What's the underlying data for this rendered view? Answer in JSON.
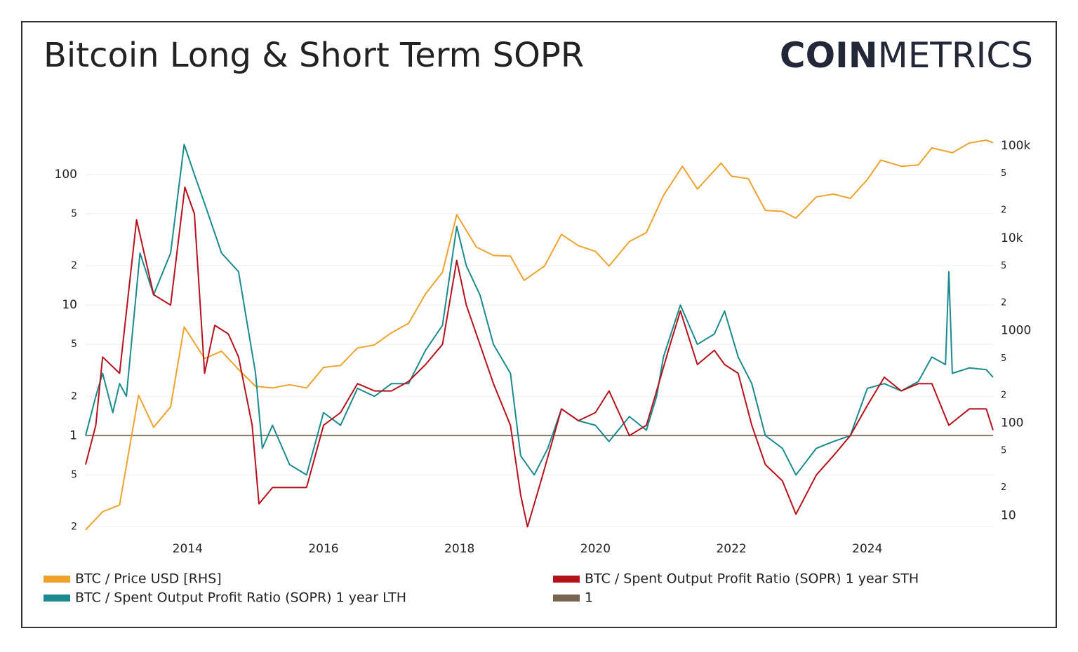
{
  "chart_data": {
    "type": "line",
    "title": "Bitcoin Long & Short Term SOPR",
    "logo": {
      "bold": "COIN",
      "light": "METRICS"
    },
    "log_scale": true,
    "grid": true,
    "xlim": [
      2012.5,
      2025.85
    ],
    "xticks": [
      2014,
      2016,
      2018,
      2020,
      2022,
      2024
    ],
    "ylim": [
      0.18,
      190
    ],
    "yticks": [
      {
        "value": 0.2,
        "label": "2"
      },
      {
        "value": 0.5,
        "label": "5"
      },
      1,
      2,
      5,
      10,
      {
        "value": 20,
        "label": "2"
      },
      {
        "value": 50,
        "label": "5"
      },
      100
    ],
    "y2lim": [
      6.5,
      121000
    ],
    "y2ticks": [
      10,
      {
        "value": 20,
        "label": "2"
      },
      {
        "value": 50,
        "label": "5"
      },
      100,
      {
        "value": 200,
        "label": "2"
      },
      {
        "value": 500,
        "label": "5"
      },
      1000,
      {
        "value": 2000,
        "label": "2"
      },
      {
        "value": 5000,
        "label": "5"
      },
      {
        "value": 10000,
        "label": "10k"
      },
      {
        "value": 20000,
        "label": "2"
      },
      {
        "value": 50000,
        "label": "5"
      },
      {
        "value": 100000,
        "label": "100k"
      }
    ],
    "series": [
      {
        "name": "BTC / Price USD [RHS]",
        "color": "#f0a22e",
        "axis": "y2",
        "x": [
          2012.5,
          2012.75,
          2013.0,
          2013.28,
          2013.5,
          2013.75,
          2013.95,
          2014.25,
          2014.5,
          2014.75,
          2015.0,
          2015.25,
          2015.5,
          2015.75,
          2016.0,
          2016.25,
          2016.5,
          2016.75,
          2017.0,
          2017.25,
          2017.5,
          2017.75,
          2017.96,
          2018.25,
          2018.5,
          2018.75,
          2018.95,
          2019.25,
          2019.5,
          2019.75,
          2020.0,
          2020.2,
          2020.5,
          2020.75,
          2021.0,
          2021.28,
          2021.5,
          2021.85,
          2022.0,
          2022.25,
          2022.5,
          2022.75,
          2022.95,
          2023.25,
          2023.5,
          2023.75,
          2024.0,
          2024.2,
          2024.5,
          2024.75,
          2024.95,
          2025.25,
          2025.5,
          2025.75,
          2025.85
        ],
        "values": [
          7,
          11,
          13,
          200,
          90,
          150,
          1100,
          500,
          600,
          380,
          250,
          240,
          260,
          240,
          400,
          420,
          650,
          700,
          950,
          1200,
          2500,
          4300,
          18000,
          8000,
          6500,
          6400,
          3500,
          5000,
          11000,
          8300,
          7200,
          5000,
          9200,
          11500,
          29000,
          60000,
          34000,
          65000,
          47000,
          44000,
          20000,
          19500,
          16500,
          28000,
          30000,
          27000,
          43000,
          70000,
          60000,
          62000,
          95000,
          84000,
          107000,
          115000,
          108000
        ]
      },
      {
        "name": "BTC / Spent Output Profit Ratio (SOPR) 1 year STH",
        "color": "#b5121b",
        "x": [
          2012.5,
          2012.65,
          2012.75,
          2013.0,
          2013.25,
          2013.5,
          2013.75,
          2013.96,
          2014.1,
          2014.25,
          2014.4,
          2014.6,
          2014.75,
          2014.95,
          2015.05,
          2015.25,
          2015.5,
          2015.75,
          2016.0,
          2016.25,
          2016.5,
          2016.75,
          2017.0,
          2017.25,
          2017.5,
          2017.75,
          2017.96,
          2018.1,
          2018.3,
          2018.5,
          2018.75,
          2018.9,
          2019.0,
          2019.2,
          2019.5,
          2019.75,
          2020.0,
          2020.2,
          2020.5,
          2020.75,
          2020.9,
          2021.1,
          2021.25,
          2021.5,
          2021.75,
          2021.9,
          2022.1,
          2022.3,
          2022.5,
          2022.75,
          2022.95,
          2023.25,
          2023.5,
          2023.75,
          2024.0,
          2024.25,
          2024.5,
          2024.75,
          2024.95,
          2025.2,
          2025.5,
          2025.75,
          2025.85
        ],
        "values": [
          0.6,
          1.2,
          4,
          3,
          45,
          12,
          10,
          80,
          50,
          3,
          7,
          6,
          4,
          1.2,
          0.3,
          0.4,
          0.4,
          0.4,
          1.2,
          1.5,
          2.5,
          2.2,
          2.2,
          2.6,
          3.5,
          5,
          22,
          10,
          5,
          2.5,
          1.2,
          0.35,
          0.2,
          0.45,
          1.6,
          1.3,
          1.5,
          2.2,
          1.0,
          1.2,
          2.2,
          5,
          9,
          3.5,
          4.5,
          3.5,
          3,
          1.2,
          0.6,
          0.45,
          0.25,
          0.5,
          0.7,
          1.0,
          1.7,
          2.8,
          2.2,
          2.5,
          2.5,
          1.2,
          1.6,
          1.6,
          1.1
        ]
      },
      {
        "name": "BTC / Spent Output Profit Ratio (SOPR) 1 year LTH",
        "color": "#1a8a8f",
        "x": [
          2012.5,
          2012.65,
          2012.75,
          2012.9,
          2013.0,
          2013.1,
          2013.3,
          2013.5,
          2013.75,
          2013.95,
          2014.1,
          2014.25,
          2014.5,
          2014.75,
          2015.0,
          2015.1,
          2015.25,
          2015.5,
          2015.75,
          2016.0,
          2016.25,
          2016.5,
          2016.75,
          2017.0,
          2017.25,
          2017.5,
          2017.75,
          2017.96,
          2018.1,
          2018.3,
          2018.5,
          2018.75,
          2018.9,
          2019.1,
          2019.3,
          2019.5,
          2019.75,
          2020.0,
          2020.2,
          2020.5,
          2020.75,
          2020.9,
          2021.0,
          2021.25,
          2021.5,
          2021.75,
          2021.9,
          2022.1,
          2022.3,
          2022.5,
          2022.75,
          2022.95,
          2023.25,
          2023.5,
          2023.75,
          2024.0,
          2024.25,
          2024.5,
          2024.75,
          2024.95,
          2025.15,
          2025.2,
          2025.25,
          2025.5,
          2025.75,
          2025.85
        ],
        "values": [
          1.0,
          2,
          3,
          1.5,
          2.5,
          2,
          25,
          12,
          25,
          170,
          100,
          60,
          25,
          18,
          3,
          0.8,
          1.2,
          0.6,
          0.5,
          1.5,
          1.2,
          2.3,
          2.0,
          2.5,
          2.5,
          4.5,
          7,
          40,
          20,
          12,
          5,
          3,
          0.7,
          0.5,
          0.8,
          1.6,
          1.3,
          1.2,
          0.9,
          1.4,
          1.1,
          2,
          4,
          10,
          5,
          6,
          9,
          4,
          2.5,
          1.0,
          0.8,
          0.5,
          0.8,
          0.9,
          1.0,
          2.3,
          2.5,
          2.2,
          2.6,
          4.0,
          3.5,
          18,
          3.0,
          3.3,
          3.2,
          2.8
        ]
      },
      {
        "name": "1",
        "color": "#7a6450",
        "x": [
          2012.5,
          2025.85
        ],
        "values": [
          1,
          1
        ]
      }
    ]
  }
}
